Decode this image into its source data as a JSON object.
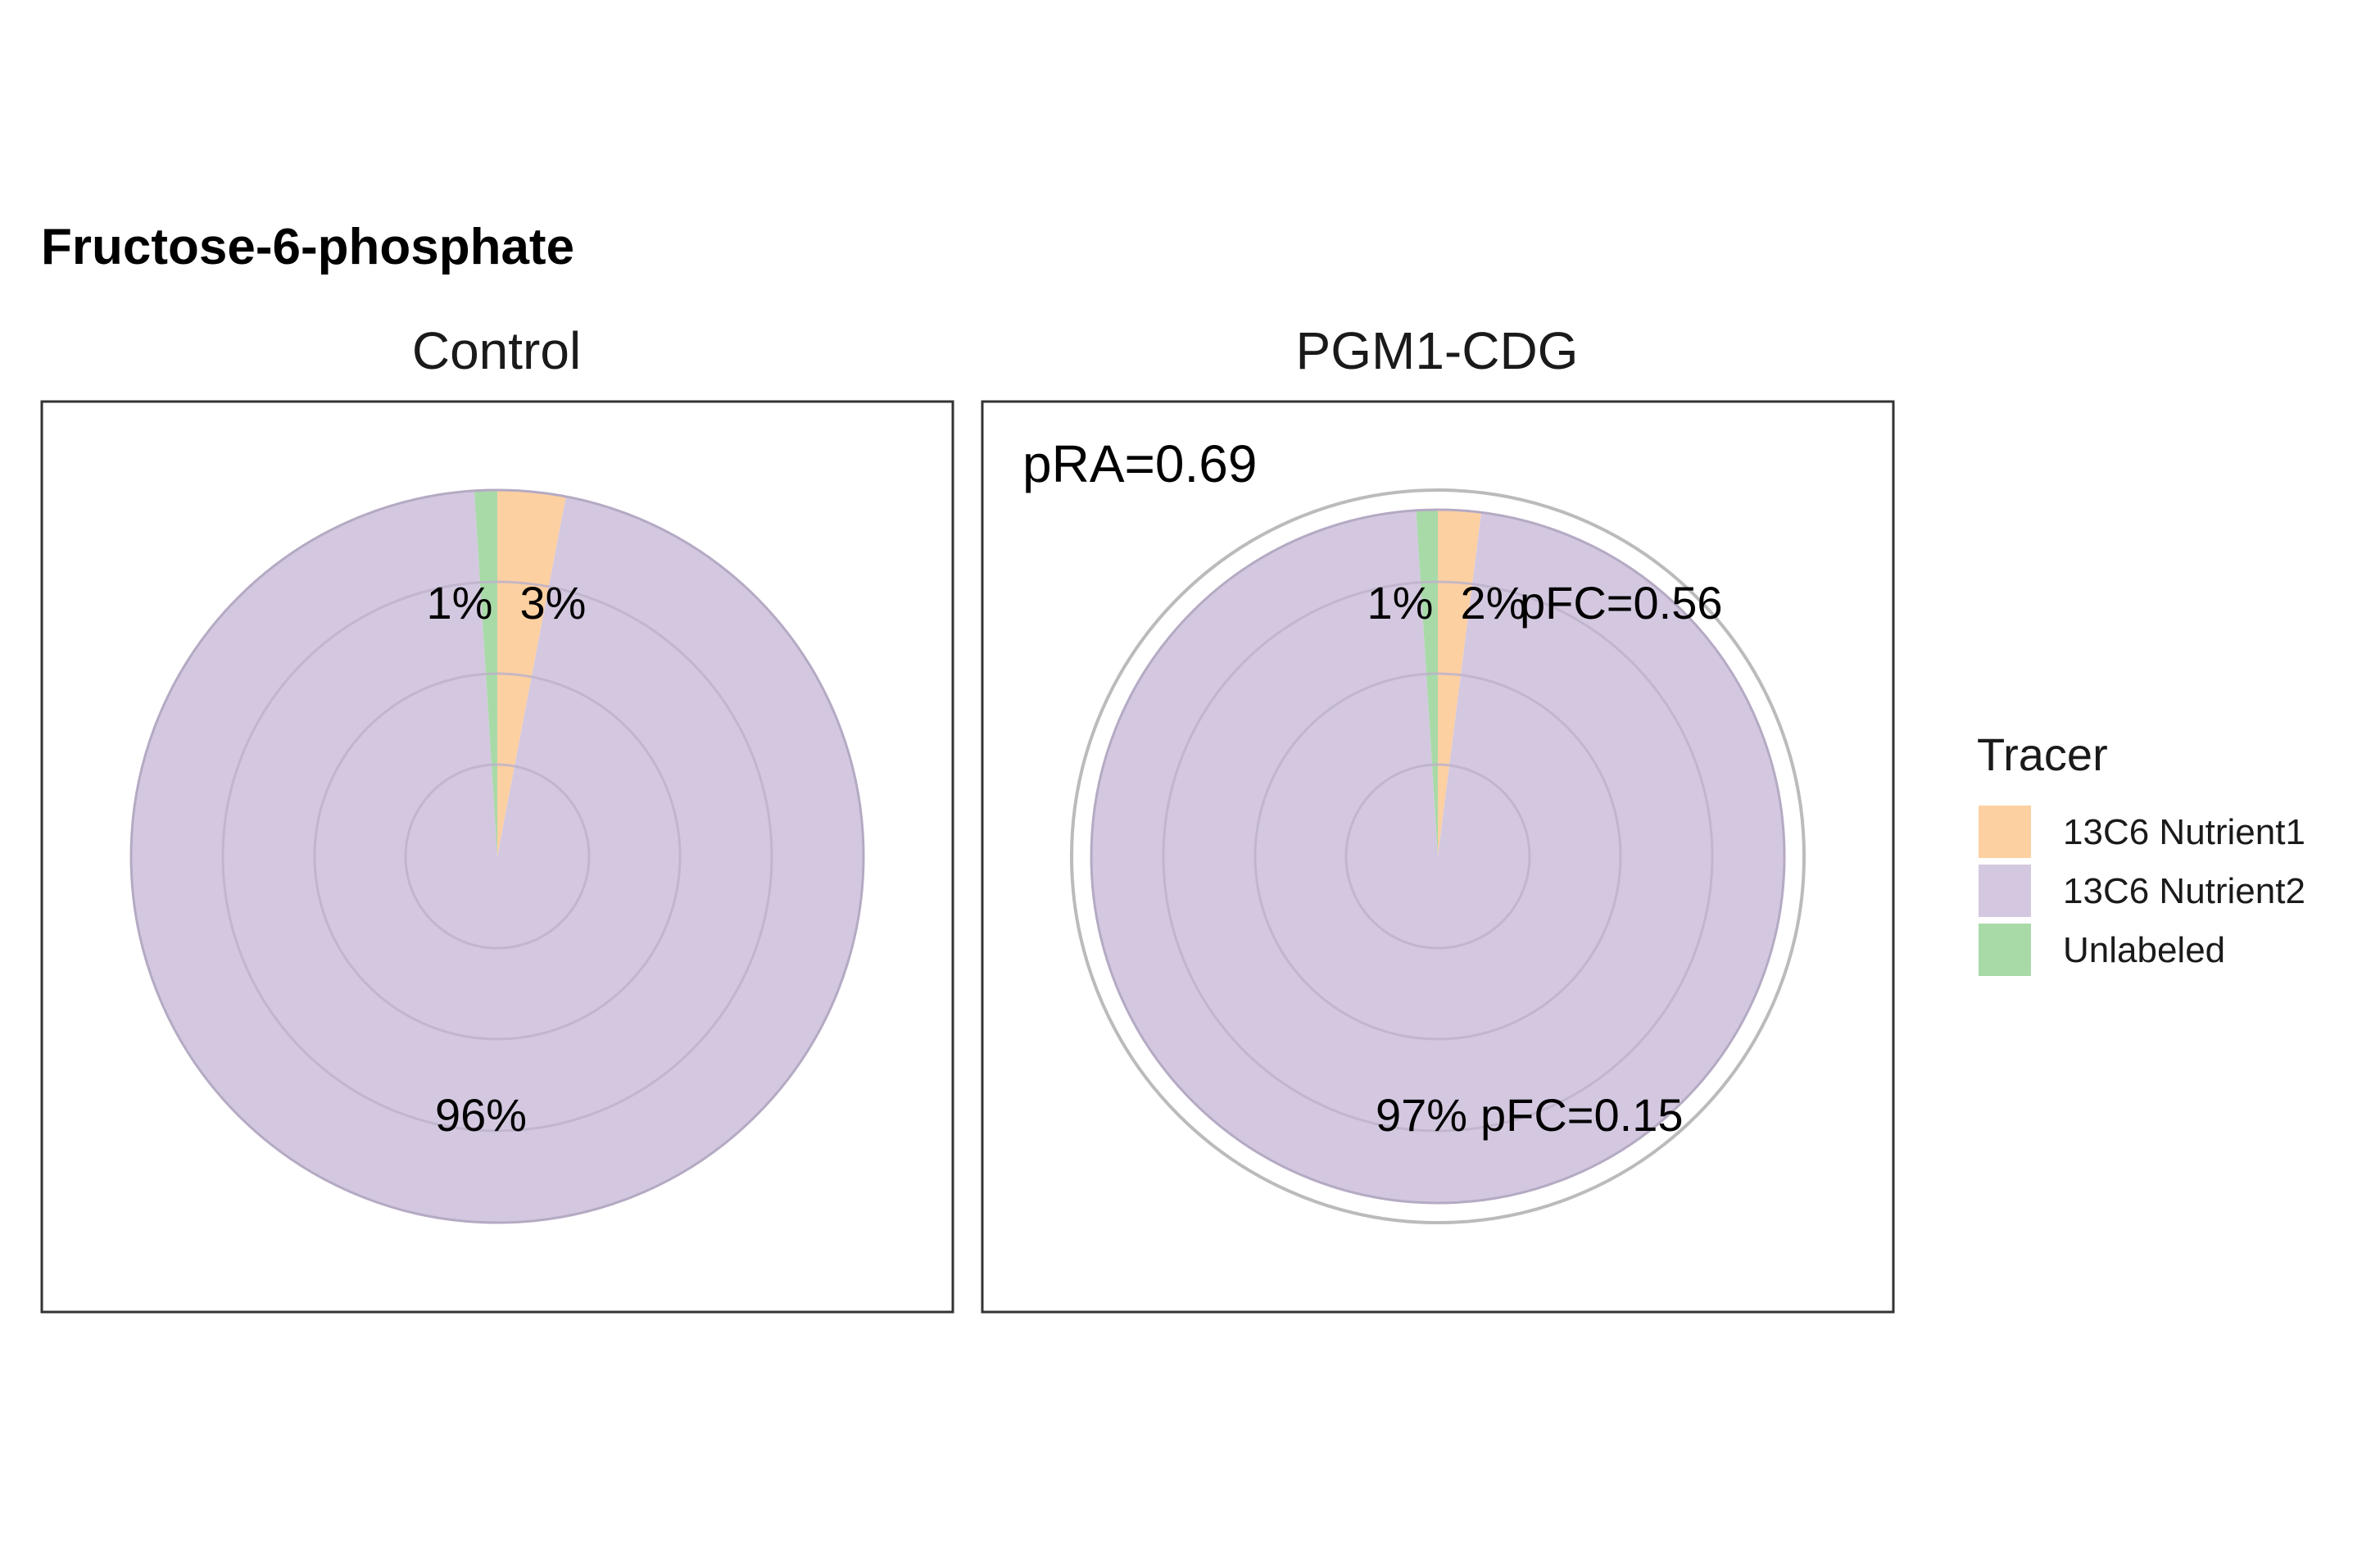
{
  "chart_data": {
    "type": "pie",
    "title": "Fructose-6-phosphate",
    "legend": {
      "title": "Tracer",
      "position": "right",
      "entries": [
        {
          "name": "13C6 Nutrient1",
          "color": "#FDD0A2"
        },
        {
          "name": "13C6 Nutrient2",
          "color": "#D4C8E0"
        },
        {
          "name": "Unlabeled",
          "color": "#A8DAA8"
        }
      ]
    },
    "panels": [
      {
        "label": "Control",
        "slices": [
          {
            "series": "13C6 Nutrient1",
            "value": 3,
            "label": "3%"
          },
          {
            "series": "13C6 Nutrient2",
            "value": 96,
            "label": "96%"
          },
          {
            "series": "Unlabeled",
            "value": 1,
            "label": "1%"
          }
        ],
        "outer_ring": false,
        "pRA": null,
        "pFC_nutrient1": null,
        "pFC_nutrient2": null
      },
      {
        "label": "PGM1-CDG",
        "slices": [
          {
            "series": "13C6 Nutrient1",
            "value": 2,
            "label": "2%"
          },
          {
            "series": "13C6 Nutrient2",
            "value": 97,
            "label": "97%"
          },
          {
            "series": "Unlabeled",
            "value": 1,
            "label": "1%"
          }
        ],
        "outer_ring": true,
        "pRA": "pRA=0.69",
        "pFC_nutrient1": "pFC=0.56",
        "pFC_nutrient2": "pFC=0.15"
      }
    ]
  },
  "colors": {
    "panel_border": "#333333",
    "ring": "#bdb3c9",
    "outer_ring": "#bbbbbb",
    "slice_border": "#b5aac3"
  }
}
